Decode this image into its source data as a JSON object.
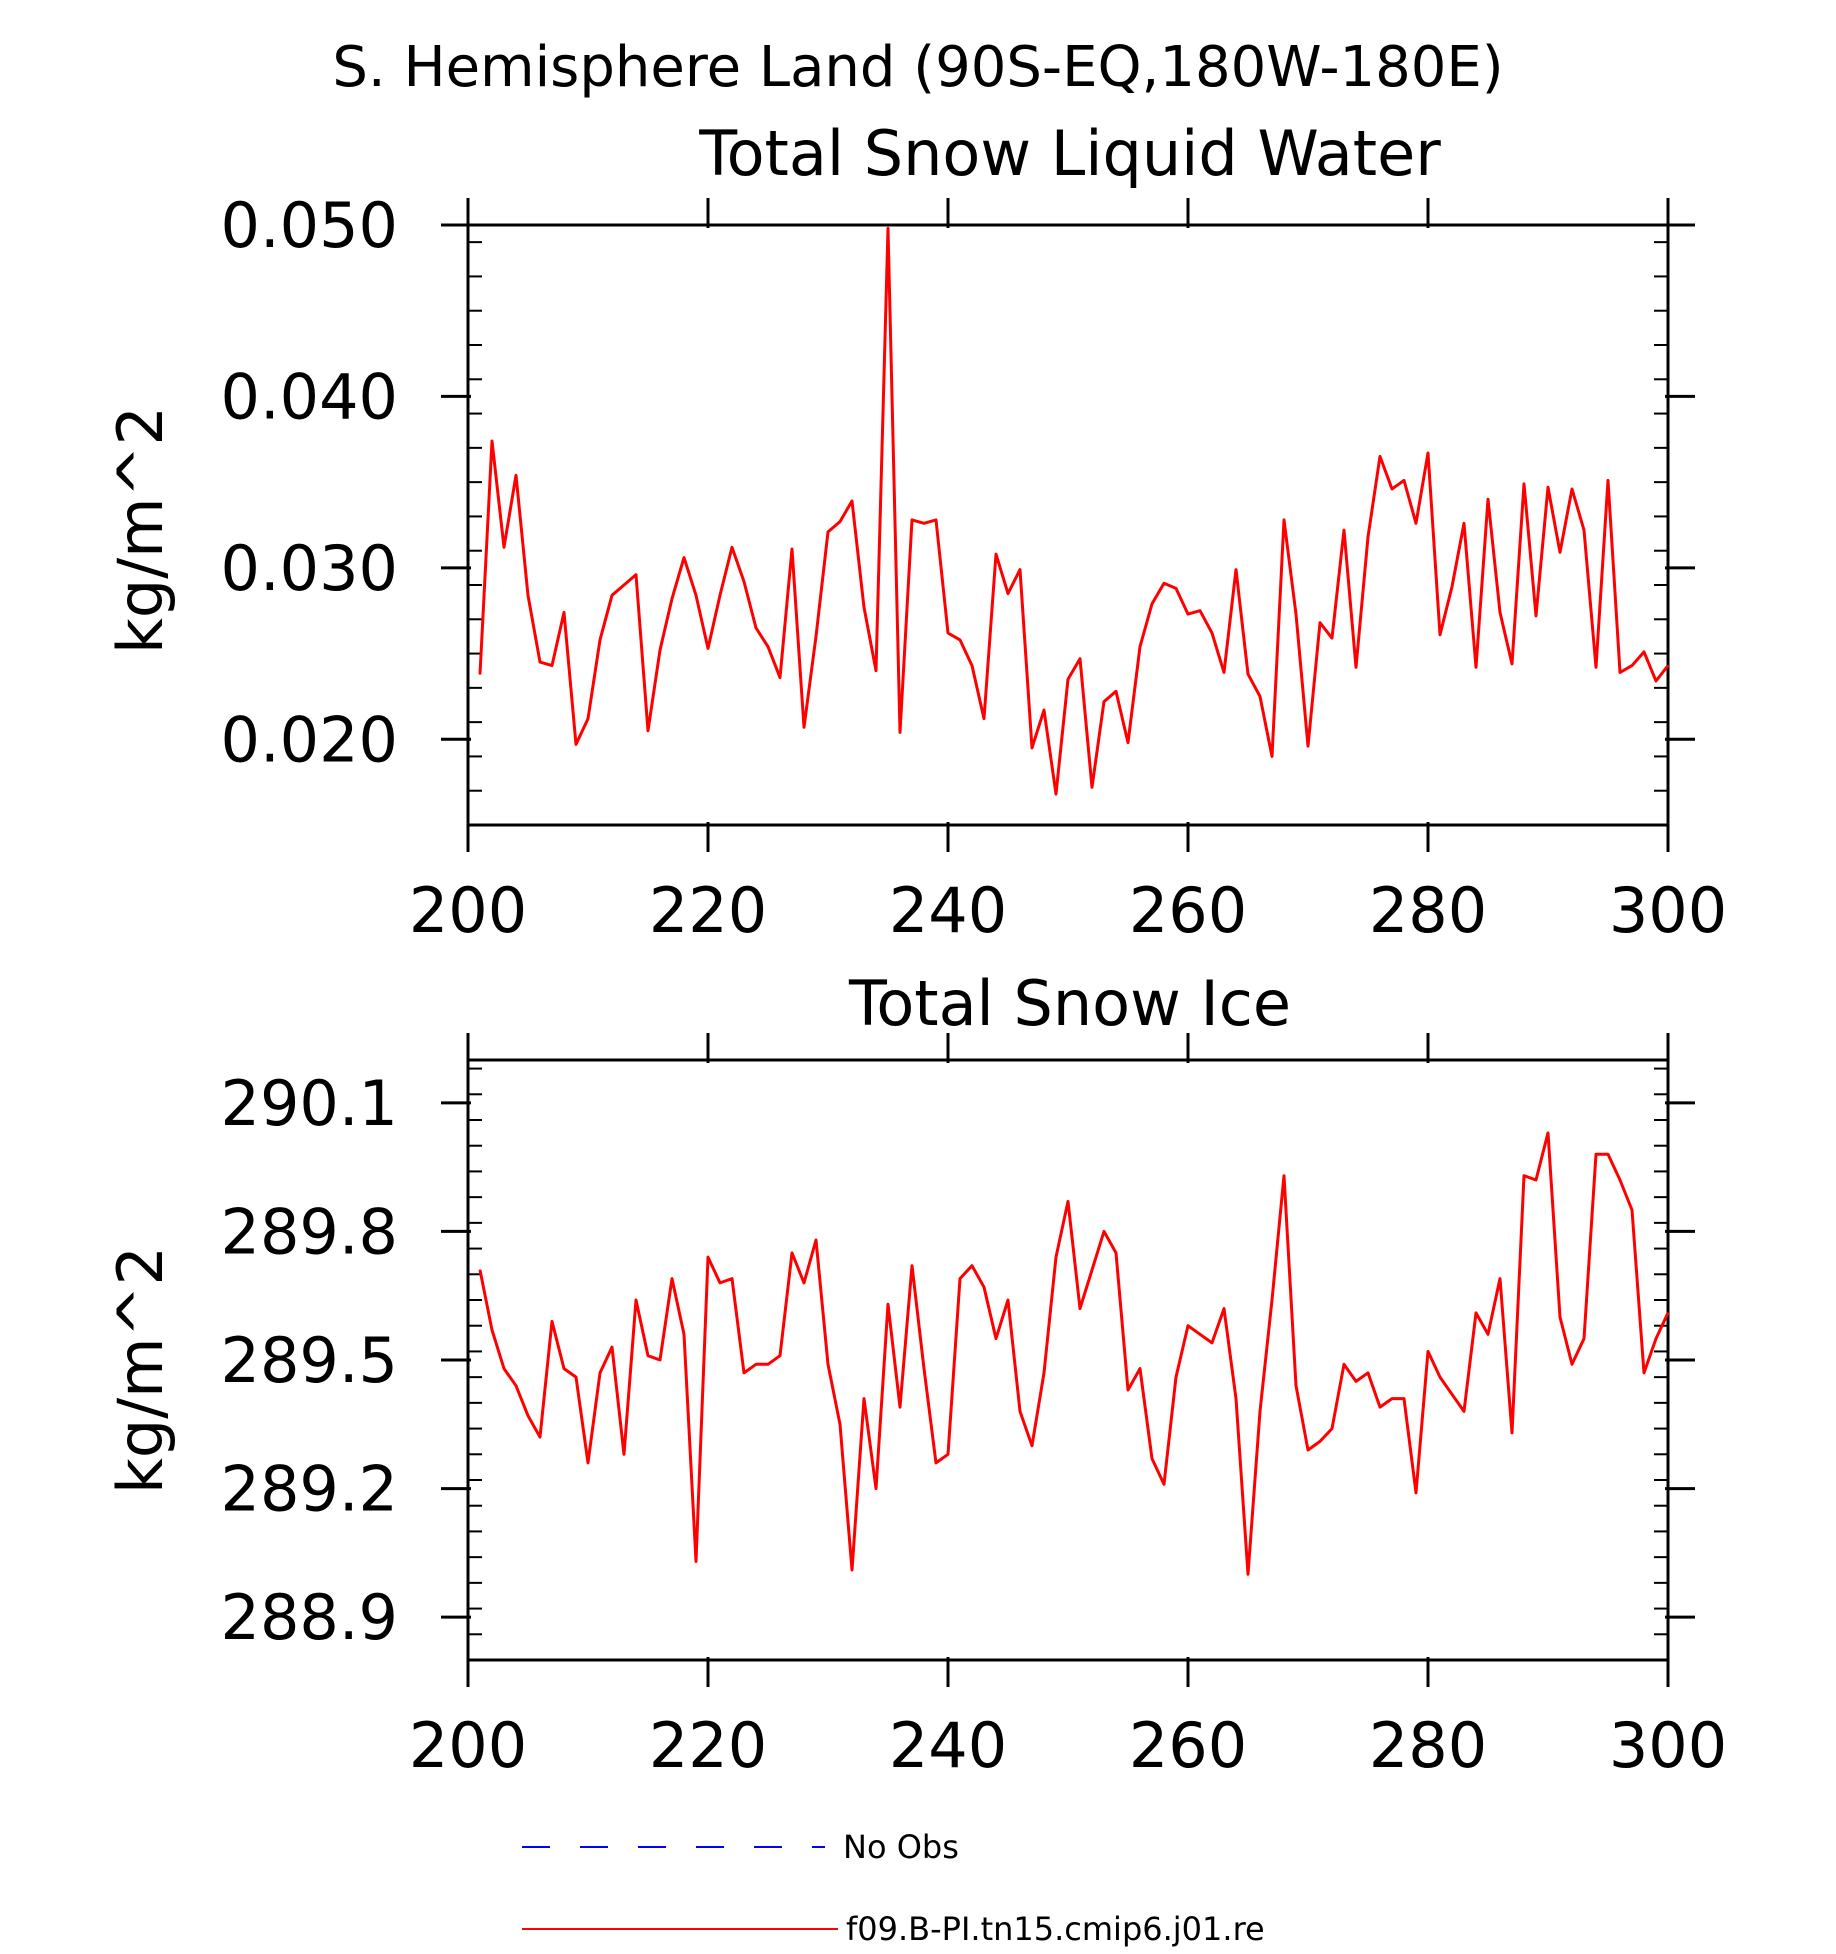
{
  "figure_title": "S. Hemisphere Land (90S-EQ,180W-180E)",
  "legend": [
    {
      "label": "No Obs",
      "color": "#0000ff",
      "dash": true
    },
    {
      "label": "f09.B-PI.tn15.cmip6.j01.re",
      "color": "#ff0000",
      "dash": false
    }
  ],
  "chart_data": [
    {
      "type": "line",
      "title": "Total Snow Liquid Water",
      "ylabel": "kg/m^2",
      "xlabel": "",
      "xlim": [
        200,
        300
      ],
      "ylim": [
        0.015,
        0.05
      ],
      "xticks": [
        200,
        220,
        240,
        260,
        280,
        300
      ],
      "yticks": [
        0.02,
        0.03,
        0.04,
        0.05
      ],
      "ytick_labels": [
        "0.020",
        "0.030",
        "0.040",
        "0.050"
      ],
      "grid": false,
      "series": [
        {
          "name": "f09.B-PI.tn15.cmip6.j01.re",
          "color": "#ff0000",
          "x": [
            201,
            202,
            203,
            204,
            205,
            206,
            207,
            208,
            209,
            210,
            211,
            212,
            213,
            214,
            215,
            216,
            217,
            218,
            219,
            220,
            221,
            222,
            223,
            224,
            225,
            226,
            227,
            228,
            229,
            230,
            231,
            232,
            233,
            234,
            235,
            236,
            237,
            238,
            239,
            240,
            241,
            242,
            243,
            244,
            245,
            246,
            247,
            248,
            249,
            250,
            251,
            252,
            253,
            254,
            255,
            256,
            257,
            258,
            259,
            260,
            261,
            262,
            263,
            264,
            265,
            266,
            267,
            268,
            269,
            270,
            271,
            272,
            273,
            274,
            275,
            276,
            277,
            278,
            279,
            280,
            281,
            282,
            283,
            284,
            285,
            286,
            287,
            288,
            289,
            290,
            291,
            292,
            293,
            294,
            295,
            296,
            297,
            298,
            299,
            300
          ],
          "values": [
            0.0238,
            0.0374,
            0.0312,
            0.0354,
            0.0284,
            0.0245,
            0.0243,
            0.0274,
            0.0197,
            0.0212,
            0.0258,
            0.0284,
            0.029,
            0.0296,
            0.0205,
            0.0252,
            0.0282,
            0.0306,
            0.0284,
            0.0253,
            0.0284,
            0.0312,
            0.0292,
            0.0265,
            0.0254,
            0.0236,
            0.0311,
            0.0207,
            0.026,
            0.0321,
            0.0327,
            0.0339,
            0.0277,
            0.024,
            0.0498,
            0.0204,
            0.0328,
            0.0326,
            0.0328,
            0.0262,
            0.0258,
            0.0243,
            0.0212,
            0.0308,
            0.0285,
            0.0299,
            0.0195,
            0.0217,
            0.0168,
            0.0235,
            0.0247,
            0.0172,
            0.0222,
            0.0228,
            0.0198,
            0.0254,
            0.0279,
            0.0291,
            0.0288,
            0.0273,
            0.0275,
            0.0262,
            0.0239,
            0.0299,
            0.0238,
            0.0225,
            0.019,
            0.0328,
            0.0273,
            0.0196,
            0.0268,
            0.0259,
            0.0322,
            0.0242,
            0.0318,
            0.0365,
            0.0346,
            0.0351,
            0.0326,
            0.0367,
            0.0261,
            0.0289,
            0.0326,
            0.0242,
            0.034,
            0.0274,
            0.0244,
            0.0349,
            0.0272,
            0.0347,
            0.0309,
            0.0346,
            0.0322,
            0.0242,
            0.0351,
            0.0239,
            0.0243,
            0.0251,
            0.0234,
            0.0243
          ]
        }
      ]
    },
    {
      "type": "line",
      "title": "Total Snow Ice",
      "ylabel": "kg/m^2",
      "xlabel": "",
      "xlim": [
        200,
        300
      ],
      "ylim": [
        288.8,
        290.2
      ],
      "xticks": [
        200,
        220,
        240,
        260,
        280,
        300
      ],
      "yticks": [
        288.9,
        289.2,
        289.5,
        289.8,
        290.1
      ],
      "ytick_labels": [
        "288.9",
        "289.2",
        "289.5",
        "289.8",
        "290.1"
      ],
      "grid": false,
      "series": [
        {
          "name": "f09.B-PI.tn15.cmip6.j01.re",
          "color": "#ff0000",
          "x": [
            201,
            202,
            203,
            204,
            205,
            206,
            207,
            208,
            209,
            210,
            211,
            212,
            213,
            214,
            215,
            216,
            217,
            218,
            219,
            220,
            221,
            222,
            223,
            224,
            225,
            226,
            227,
            228,
            229,
            230,
            231,
            232,
            233,
            234,
            235,
            236,
            237,
            238,
            239,
            240,
            241,
            242,
            243,
            244,
            245,
            246,
            247,
            248,
            249,
            250,
            251,
            252,
            253,
            254,
            255,
            256,
            257,
            258,
            259,
            260,
            261,
            262,
            263,
            264,
            265,
            266,
            267,
            268,
            269,
            270,
            271,
            272,
            273,
            274,
            275,
            276,
            277,
            278,
            279,
            280,
            281,
            282,
            283,
            284,
            285,
            286,
            287,
            288,
            289,
            290,
            291,
            292,
            293,
            294,
            295,
            296,
            297,
            298,
            299,
            300
          ],
          "values": [
            289.71,
            289.57,
            289.48,
            289.44,
            289.37,
            289.32,
            289.59,
            289.48,
            289.46,
            289.26,
            289.47,
            289.53,
            289.28,
            289.64,
            289.51,
            289.5,
            289.69,
            289.56,
            289.03,
            289.74,
            289.68,
            289.69,
            289.47,
            289.49,
            289.49,
            289.51,
            289.75,
            289.68,
            289.78,
            289.49,
            289.35,
            289.01,
            289.41,
            289.2,
            289.63,
            289.39,
            289.72,
            289.48,
            289.26,
            289.28,
            289.69,
            289.72,
            289.67,
            289.55,
            289.64,
            289.38,
            289.3,
            289.47,
            289.74,
            289.87,
            289.62,
            289.71,
            289.8,
            289.75,
            289.43,
            289.48,
            289.27,
            289.21,
            289.46,
            289.58,
            289.56,
            289.54,
            289.62,
            289.41,
            289.0,
            289.38,
            289.64,
            289.93,
            289.44,
            289.29,
            289.31,
            289.34,
            289.49,
            289.45,
            289.47,
            289.39,
            289.41,
            289.41,
            289.19,
            289.52,
            289.46,
            289.42,
            289.38,
            289.61,
            289.56,
            289.69,
            289.33,
            289.93,
            289.92,
            290.03,
            289.6,
            289.49,
            289.55,
            289.98,
            289.98,
            289.92,
            289.85,
            289.47,
            289.55,
            289.61
          ]
        }
      ]
    }
  ]
}
